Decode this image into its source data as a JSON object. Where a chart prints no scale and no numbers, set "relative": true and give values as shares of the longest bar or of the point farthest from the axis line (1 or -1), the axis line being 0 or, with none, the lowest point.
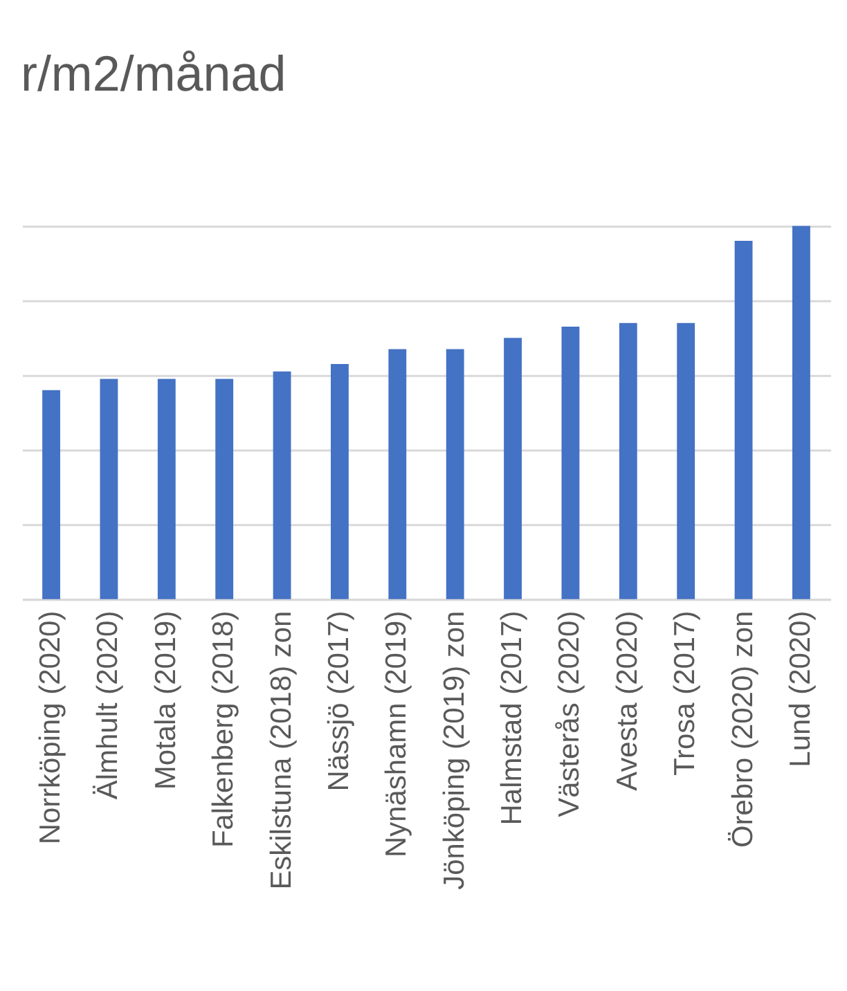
{
  "chart_data": {
    "type": "bar",
    "title": "r/m2/månad",
    "categories": [
      "Norrköping (2020)",
      "Älmhult (2020)",
      "Motala (2019)",
      "Falkenberg (2018)",
      "Eskilstuna (2018) zon",
      "Nässjö (2017)",
      "Nynäshamn (2019)",
      "Jönköping (2019) zon",
      "Halmstad (2017)",
      "Västerås (2020)",
      "Avesta (2020)",
      "Trosa (2017)",
      "Örebro (2020) zon",
      "Lund (2020)"
    ],
    "values": [
      0.56,
      0.59,
      0.59,
      0.59,
      0.61,
      0.63,
      0.67,
      0.67,
      0.7,
      0.73,
      0.74,
      0.74,
      0.96,
      1
    ],
    "color": "#4472c4",
    "relative": true,
    "grid": "y"
  }
}
